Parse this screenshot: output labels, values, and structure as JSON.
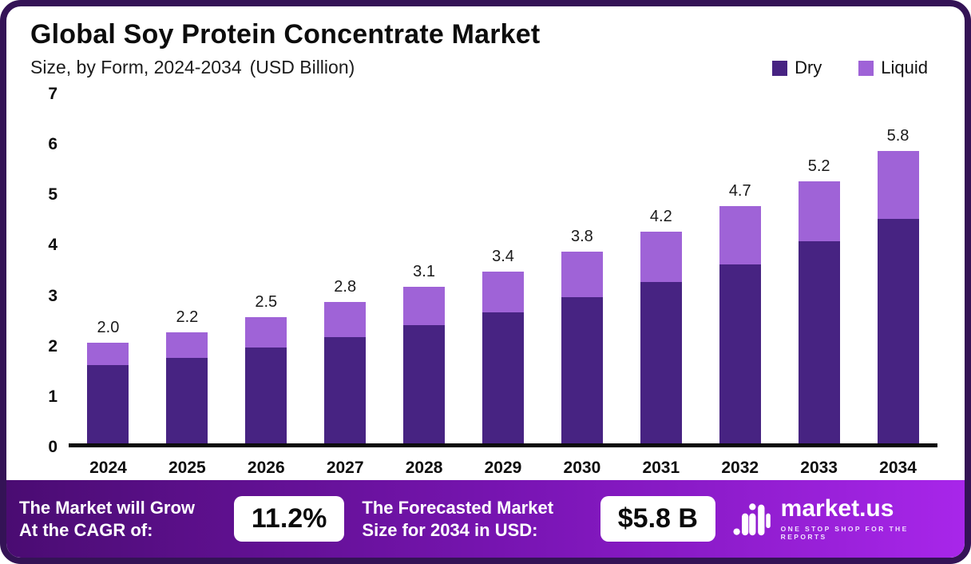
{
  "header": {
    "title": "Global Soy Protein Concentrate Market",
    "subtitle": "Size, by Form, 2024-2034",
    "subtitle_unit": "(USD Billion)"
  },
  "colors": {
    "dry": "#472382",
    "liquid": "#9f63d7",
    "border": "#341356",
    "footer_gradient_start": "#4a0c72",
    "footer_gradient_end": "#a826ea"
  },
  "chart_data": {
    "type": "bar",
    "stacked": true,
    "title": "Global Soy Protein Concentrate Market Size, by Form, 2024-2034 (USD Billion)",
    "categories": [
      "2024",
      "2025",
      "2026",
      "2027",
      "2028",
      "2029",
      "2030",
      "2031",
      "2032",
      "2033",
      "2034"
    ],
    "series": [
      {
        "name": "Dry",
        "color": "#472382",
        "values": [
          1.55,
          1.7,
          1.9,
          2.1,
          2.35,
          2.6,
          2.9,
          3.2,
          3.55,
          4.0,
          4.45
        ]
      },
      {
        "name": "Liquid",
        "color": "#9f63d7",
        "values": [
          0.45,
          0.5,
          0.6,
          0.7,
          0.75,
          0.8,
          0.9,
          1.0,
          1.15,
          1.2,
          1.35
        ]
      }
    ],
    "totals_labels": [
      "2.0",
      "2.2",
      "2.5",
      "2.8",
      "3.1",
      "3.4",
      "3.8",
      "4.2",
      "4.7",
      "5.2",
      "5.8"
    ],
    "xlabel": "",
    "ylabel": "",
    "ylim": [
      0,
      7
    ],
    "yticks": [
      0,
      1,
      2,
      3,
      4,
      5,
      6,
      7
    ],
    "grid": false,
    "legend_position": "top-right",
    "legend": [
      "Dry",
      "Liquid"
    ]
  },
  "footer": {
    "cagr_label": "The Market will Grow At the CAGR of:",
    "cagr_value": "11.2%",
    "forecast_label": "The Forecasted Market Size for 2034 in USD:",
    "forecast_value": "$5.8 B",
    "brand_name": "market.us",
    "brand_tagline": "ONE STOP SHOP FOR THE REPORTS"
  }
}
